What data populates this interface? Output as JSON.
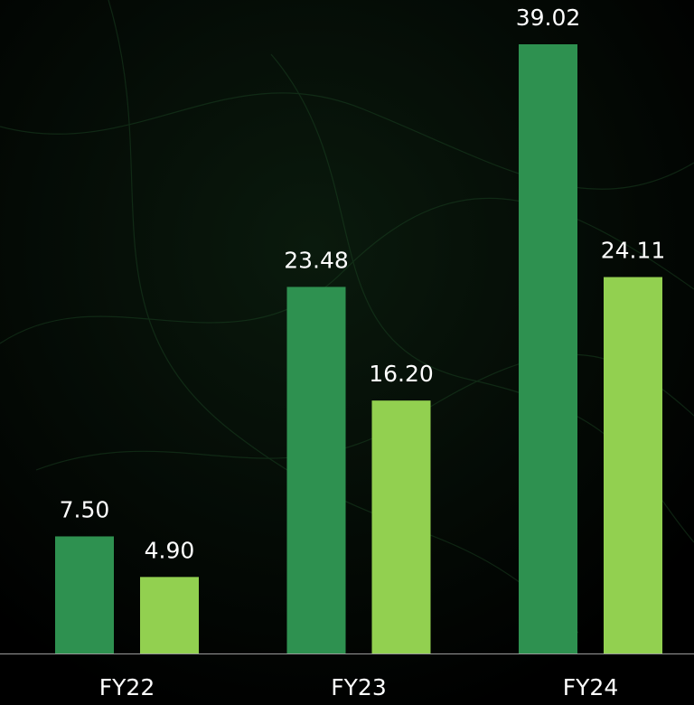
{
  "chart_data": {
    "type": "bar",
    "categories": [
      "FY22",
      "FY23",
      "FY24"
    ],
    "series": [
      {
        "color": "#2e9150",
        "values": [
          7.5,
          23.48,
          39.02
        ],
        "value_labels": [
          "7.50",
          "23.48",
          "39.02"
        ]
      },
      {
        "color": "#92d050",
        "values": [
          4.9,
          16.2,
          24.11
        ],
        "value_labels": [
          "4.90",
          "16.20",
          "24.11"
        ]
      }
    ]
  }
}
